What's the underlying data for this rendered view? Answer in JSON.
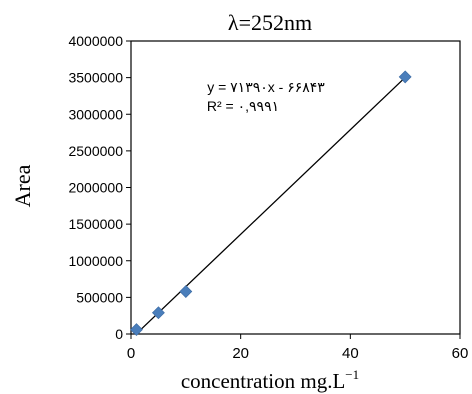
{
  "chart_data": {
    "type": "scatter",
    "title": "λ=252nm",
    "xlabel": "concentration  mg.L",
    "xlabel_superscript": "−1",
    "ylabel": "Area",
    "xlim": [
      0,
      60
    ],
    "ylim": [
      0,
      4000000
    ],
    "x_ticks": [
      0,
      20,
      40,
      60
    ],
    "y_ticks": [
      0,
      500000,
      1000000,
      1500000,
      2000000,
      2500000,
      3000000,
      3500000,
      4000000
    ],
    "grid": false,
    "series": [
      {
        "marker": "diamond",
        "color": "#4a7ebb",
        "x": [
          1,
          5,
          10,
          50
        ],
        "y": [
          60000,
          290000,
          580000,
          3510000
        ]
      }
    ],
    "trendline": {
      "type": "linear",
      "slope": 71390,
      "intercept": -66843,
      "color": "#000000",
      "equation_text": "y = ۷۱۳۹۰x - ۶۶۸۴۳",
      "r2_text": "R² = ۰,۹۹۹۱"
    }
  }
}
